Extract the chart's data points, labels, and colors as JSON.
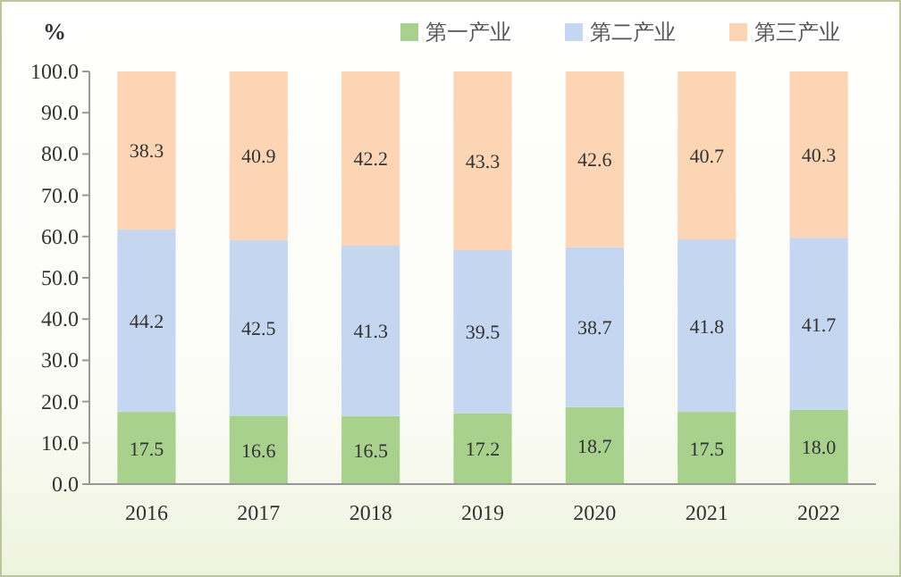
{
  "chart_data": {
    "type": "bar",
    "stacked": true,
    "ylabel": "%",
    "categories": [
      "2016",
      "2017",
      "2018",
      "2019",
      "2020",
      "2021",
      "2022"
    ],
    "series": [
      {
        "name": "第一产业",
        "color": "#a9d18e",
        "values": [
          17.5,
          16.6,
          16.5,
          17.2,
          18.7,
          17.5,
          18.0
        ],
        "value_labels": [
          "17.5",
          "16.6",
          "16.5",
          "17.2",
          "18.7",
          "17.5",
          "18.0"
        ]
      },
      {
        "name": "第二产业",
        "color": "#c5d6f0",
        "values": [
          44.2,
          42.5,
          41.3,
          39.5,
          38.7,
          41.8,
          41.7
        ],
        "value_labels": [
          "44.2",
          "42.5",
          "41.3",
          "39.5",
          "38.7",
          "41.8",
          "41.7"
        ]
      },
      {
        "name": "第三产业",
        "color": "#fcd5b4",
        "values": [
          38.3,
          40.9,
          42.2,
          43.3,
          42.6,
          40.7,
          40.3
        ],
        "value_labels": [
          "38.3",
          "40.9",
          "42.2",
          "43.3",
          "42.6",
          "40.7",
          "40.3"
        ]
      }
    ],
    "ylim": [
      0,
      100
    ],
    "yticks": [
      {
        "value": 0,
        "label": "0.0"
      },
      {
        "value": 10,
        "label": "10.0"
      },
      {
        "value": 20,
        "label": "20.0"
      },
      {
        "value": 30,
        "label": "30.0"
      },
      {
        "value": 40,
        "label": "40.0"
      },
      {
        "value": 50,
        "label": "50.0"
      },
      {
        "value": 60,
        "label": "60.0"
      },
      {
        "value": 70,
        "label": "70.0"
      },
      {
        "value": 80,
        "label": "80.0"
      },
      {
        "value": 90,
        "label": "90.0"
      },
      {
        "value": 100,
        "label": "100.0"
      }
    ],
    "legend": "top right"
  }
}
